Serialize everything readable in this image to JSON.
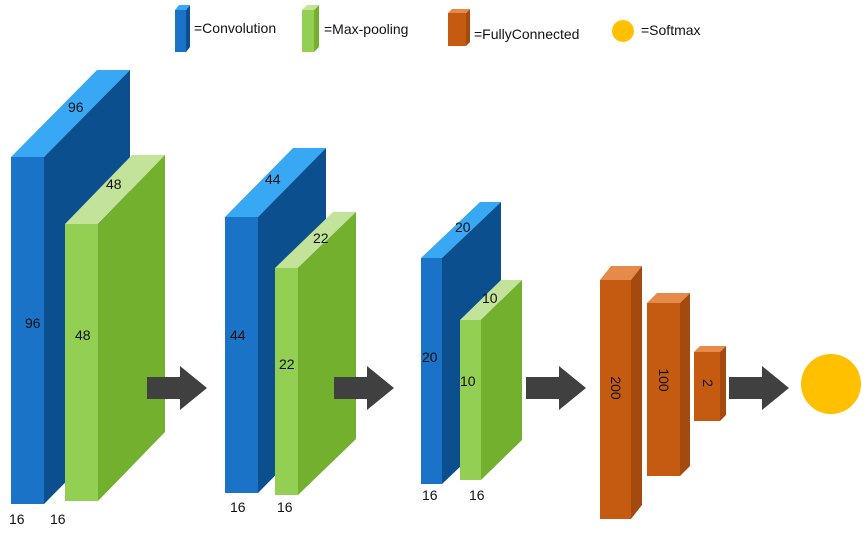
{
  "colors": {
    "convolution": {
      "front": "#1B73C7",
      "side": "#0B4F8F",
      "top": "#38A8F4"
    },
    "max_pooling": {
      "front": "#92CF52",
      "side": "#72B02E",
      "top": "#C3E39A"
    },
    "fully_connected": {
      "front": "#C55A11",
      "side": "#A44A0E",
      "top": "#E58A48"
    },
    "softmax": "#FFC000",
    "arrow": "#404040"
  },
  "legend": {
    "convolution": "=Convolution",
    "max_pooling": "=Max-pooling",
    "fully_connected": "=FullyConnected",
    "softmax": "=Softmax"
  },
  "blocks": [
    {
      "kind": "convolution",
      "top_label": "96",
      "front_label": "96",
      "depth_label": "16"
    },
    {
      "kind": "max_pooling",
      "top_label": "48",
      "front_label": "48",
      "depth_label": "16"
    },
    {
      "kind": "convolution",
      "top_label": "44",
      "front_label": "44",
      "depth_label": "16"
    },
    {
      "kind": "max_pooling",
      "top_label": "22",
      "front_label": "22",
      "depth_label": "16"
    },
    {
      "kind": "convolution",
      "top_label": "20",
      "front_label": "20",
      "depth_label": "16"
    },
    {
      "kind": "max_pooling",
      "top_label": "10",
      "front_label": "10",
      "depth_label": "16"
    },
    {
      "kind": "fully_connected",
      "label": "200"
    },
    {
      "kind": "fully_connected",
      "label": "100"
    },
    {
      "kind": "fully_connected",
      "label": "2"
    }
  ],
  "icons": [
    "right-arrow-icon",
    "right-arrow-icon",
    "right-arrow-icon",
    "right-arrow-icon"
  ]
}
